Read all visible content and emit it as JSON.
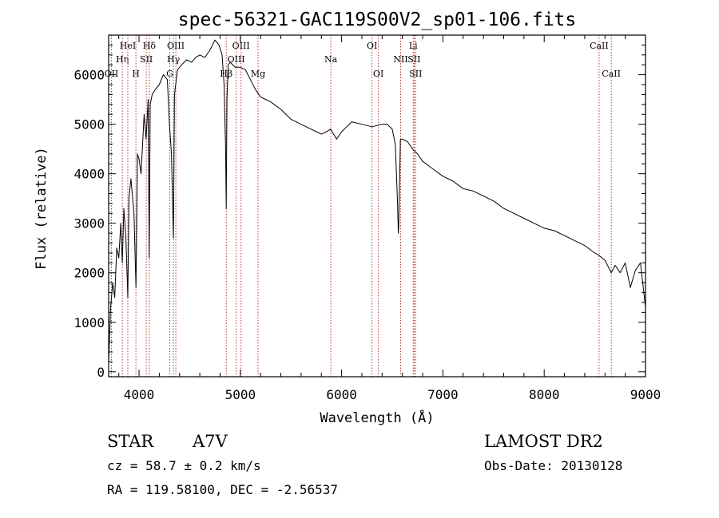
{
  "chart_data": {
    "type": "line",
    "title": "spec-56321-GAC119S00V2_sp01-106.fits",
    "xlabel": "Wavelength (Å)",
    "ylabel": "Flux (relative)",
    "xlim": [
      3700,
      9000
    ],
    "ylim": [
      -100,
      6800
    ],
    "xticks": [
      4000,
      5000,
      6000,
      7000,
      8000,
      9000
    ],
    "xtick_labels": [
      "4000",
      "5000",
      "6000",
      "7000",
      "8000",
      "9000"
    ],
    "yticks": [
      0,
      1000,
      2000,
      3000,
      4000,
      5000,
      6000
    ],
    "ytick_labels": [
      "0",
      "1000",
      "2000",
      "3000",
      "4000",
      "5000",
      "6000"
    ],
    "grid": false,
    "series": [
      {
        "x": [
          3700,
          3720,
          3740,
          3760,
          3780,
          3800,
          3820,
          3835,
          3850,
          3870,
          3889,
          3900,
          3920,
          3950,
          3970,
          3985,
          4000,
          4020,
          4050,
          4070,
          4090,
          4101,
          4110,
          4130,
          4160,
          4200,
          4240,
          4280,
          4300,
          4320,
          4340,
          4350,
          4380,
          4420,
          4470,
          4520,
          4560,
          4600,
          4650,
          4700,
          4750,
          4790,
          4820,
          4840,
          4855,
          4861,
          4868,
          4880,
          4900,
          4950,
          5000,
          5050,
          5100,
          5150,
          5200,
          5300,
          5400,
          5500,
          5600,
          5700,
          5750,
          5800,
          5850,
          5890,
          5950,
          6000,
          6050,
          6100,
          6200,
          6300,
          6400,
          6450,
          6500,
          6530,
          6550,
          6560,
          6563,
          6570,
          6580,
          6600,
          6650,
          6700,
          6750,
          6800,
          6900,
          7000,
          7100,
          7200,
          7300,
          7400,
          7500,
          7600,
          7700,
          7800,
          7900,
          8000,
          8100,
          8200,
          8300,
          8400,
          8498,
          8542,
          8600,
          8662,
          8700,
          8750,
          8800,
          8850,
          8900,
          8950,
          9000
        ],
        "y": [
          200,
          1300,
          1800,
          1500,
          2500,
          2300,
          3000,
          2200,
          3300,
          2700,
          1500,
          3500,
          3900,
          3200,
          1700,
          4400,
          4300,
          4000,
          5200,
          4700,
          5500,
          2300,
          5400,
          5600,
          5700,
          5800,
          6000,
          5900,
          5000,
          4400,
          2700,
          5600,
          6100,
          6200,
          6300,
          6250,
          6350,
          6400,
          6350,
          6500,
          6700,
          6600,
          6400,
          5800,
          4500,
          3300,
          5500,
          6200,
          6250,
          6150,
          6150,
          6100,
          5900,
          5700,
          5550,
          5450,
          5300,
          5100,
          5000,
          4900,
          4850,
          4800,
          4850,
          4900,
          4700,
          4850,
          4950,
          5050,
          5000,
          4950,
          5000,
          5000,
          4900,
          4600,
          3500,
          2800,
          2900,
          3600,
          4700,
          4700,
          4650,
          4500,
          4400,
          4250,
          4100,
          3950,
          3850,
          3700,
          3650,
          3550,
          3450,
          3300,
          3200,
          3100,
          3000,
          2900,
          2850,
          2750,
          2650,
          2550,
          2400,
          2350,
          2250,
          2000,
          2150,
          2000,
          2200,
          1700,
          2050,
          2200,
          1300
        ]
      }
    ],
    "line_markers": [
      {
        "wavelength": 3727,
        "label": "OII",
        "row": 3
      },
      {
        "wavelength": 3835,
        "label": "Hη",
        "row": 2
      },
      {
        "wavelength": 3889,
        "label": "HeI",
        "row": 1
      },
      {
        "wavelength": 3969,
        "label": "H",
        "row": 3
      },
      {
        "wavelength": 4072,
        "label": "SII",
        "row": 2
      },
      {
        "wavelength": 4101,
        "label": "Hδ",
        "row": 1
      },
      {
        "wavelength": 4304,
        "label": "G",
        "row": 3
      },
      {
        "wavelength": 4340,
        "label": "Hγ",
        "row": 2
      },
      {
        "wavelength": 4363,
        "label": "OIII",
        "row": 1
      },
      {
        "wavelength": 4861,
        "label": "Hβ",
        "row": 3
      },
      {
        "wavelength": 4959,
        "label": "OIII",
        "row": 2
      },
      {
        "wavelength": 5007,
        "label": "OIII",
        "row": 1
      },
      {
        "wavelength": 5175,
        "label": "Mg",
        "row": 3
      },
      {
        "wavelength": 5893,
        "label": "Na",
        "row": 2
      },
      {
        "wavelength": 6300,
        "label": "OI",
        "row": 1
      },
      {
        "wavelength": 6363,
        "label": "OI",
        "row": 3
      },
      {
        "wavelength": 6583,
        "label": "NII",
        "row": 2
      },
      {
        "wavelength": 6707,
        "label": "Li",
        "row": 1
      },
      {
        "wavelength": 6716,
        "label": "SII",
        "row": 2
      },
      {
        "wavelength": 6731,
        "label": "SII",
        "row": 3
      },
      {
        "wavelength": 8542,
        "label": "CaII",
        "row": 1
      },
      {
        "wavelength": 8662,
        "label": "CaII",
        "row": 3
      }
    ]
  },
  "info": {
    "object_class": "STAR",
    "subclass": "A7V",
    "survey": "LAMOST DR2",
    "cz": "cz = 58.7 ± 0.2 km/s",
    "obs_date": "Obs-Date: 20130128",
    "coords": "RA = 119.58100, DEC =  -2.56537"
  }
}
